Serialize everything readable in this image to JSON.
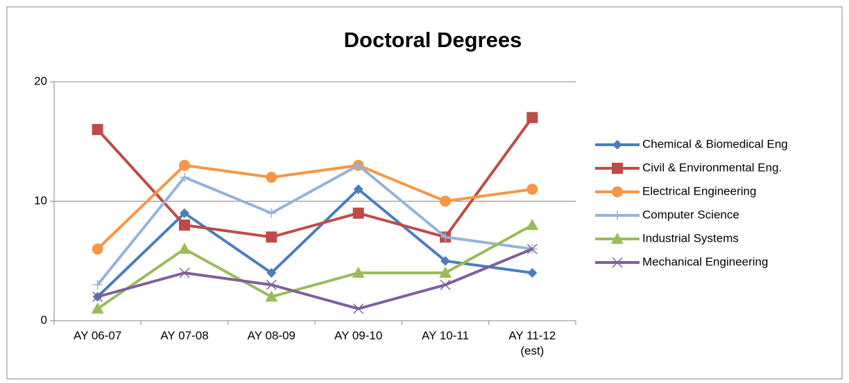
{
  "chart_data": {
    "type": "line",
    "title": "Doctoral Degrees",
    "categories": [
      "AY 06-07",
      "AY 07-08",
      "AY 08-09",
      "AY 09-10",
      "AY 10-11",
      "AY 11-12 (est)"
    ],
    "series": [
      {
        "name": "Chemical & Biomedical Eng",
        "color": "#4a7ebb",
        "marker": "diamond",
        "values": [
          2,
          9,
          4,
          11,
          5,
          4
        ]
      },
      {
        "name": "Civil & Environmental Eng.",
        "color": "#be4b48",
        "marker": "square",
        "values": [
          16,
          8,
          7,
          9,
          7,
          17
        ]
      },
      {
        "name": "Electrical Engineering",
        "color": "#f79646",
        "marker": "circle",
        "values": [
          6,
          13,
          12,
          13,
          10,
          11
        ]
      },
      {
        "name": "Computer Science",
        "color": "#95b3d7",
        "marker": "plus",
        "values": [
          3,
          12,
          9,
          13,
          7,
          6
        ]
      },
      {
        "name": "Industrial Systems",
        "color": "#9bbb59",
        "marker": "triangle",
        "values": [
          1,
          6,
          2,
          4,
          4,
          8
        ]
      },
      {
        "name": "Mechanical Engineering",
        "color": "#7f5f9b",
        "marker": "x",
        "values": [
          2,
          4,
          3,
          1,
          3,
          6
        ]
      }
    ],
    "ylim": [
      0,
      20
    ],
    "yticks": [
      0,
      10,
      20
    ],
    "grid": true,
    "legend": "right"
  }
}
